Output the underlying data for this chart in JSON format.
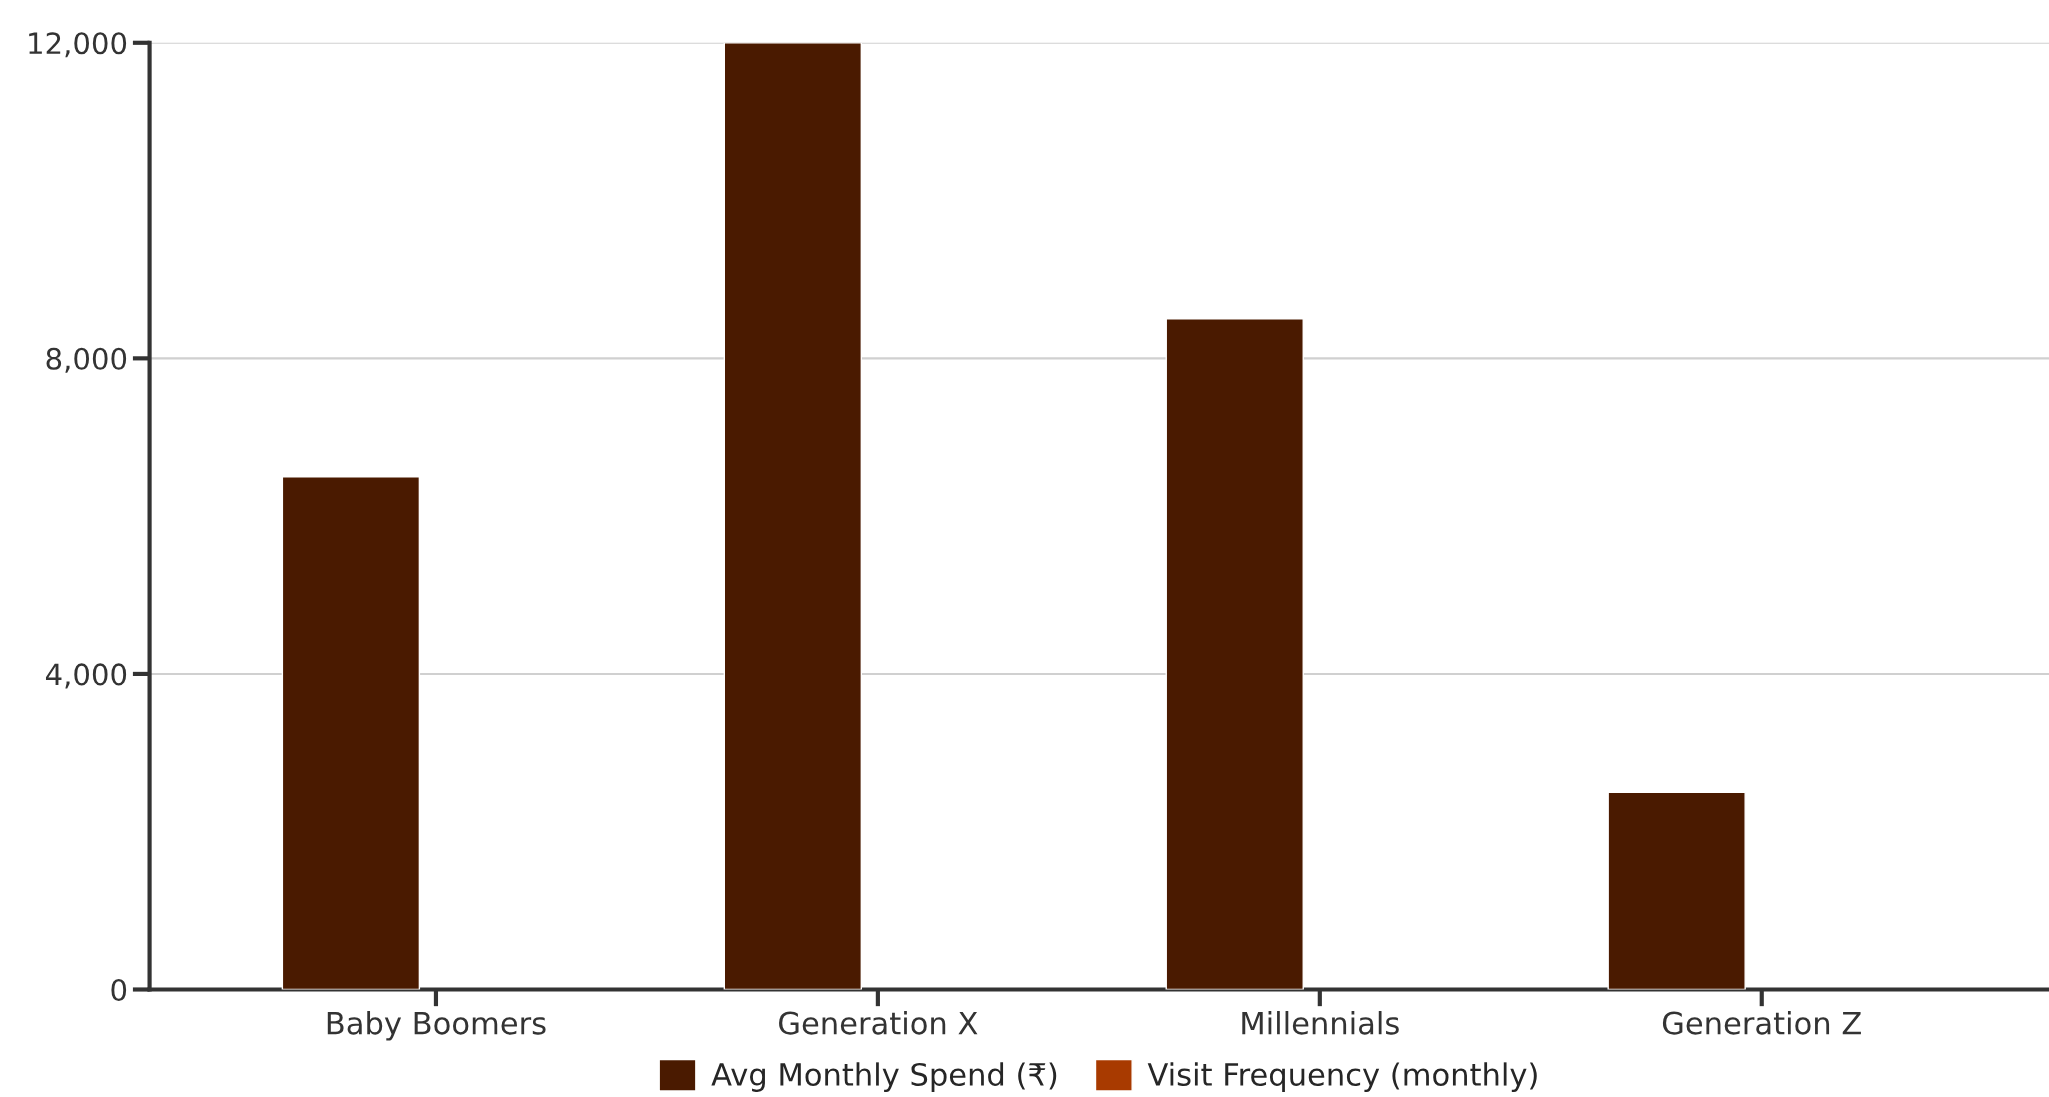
{
  "chart_data": {
    "type": "bar",
    "categories": [
      "Baby Boomers",
      "Generation X",
      "Millennials",
      "Generation Z"
    ],
    "series": [
      {
        "name": "Avg Monthly Spend (₹)",
        "color": "#4a1a00",
        "values": [
          6500,
          12000,
          8500,
          2500
        ]
      },
      {
        "name": "Visit Frequency (monthly)",
        "color": "#a83a00",
        "values": [
          null,
          null,
          null,
          null
        ]
      }
    ],
    "ylim": [
      0,
      12000
    ],
    "yticks": [
      0,
      {
        "value": 4000,
        "label": "4,000"
      },
      {
        "value": 8000,
        "label": "8,000"
      },
      {
        "value": 12000,
        "label": "12,000"
      }
    ],
    "grid": "y",
    "legend": "bottom"
  }
}
